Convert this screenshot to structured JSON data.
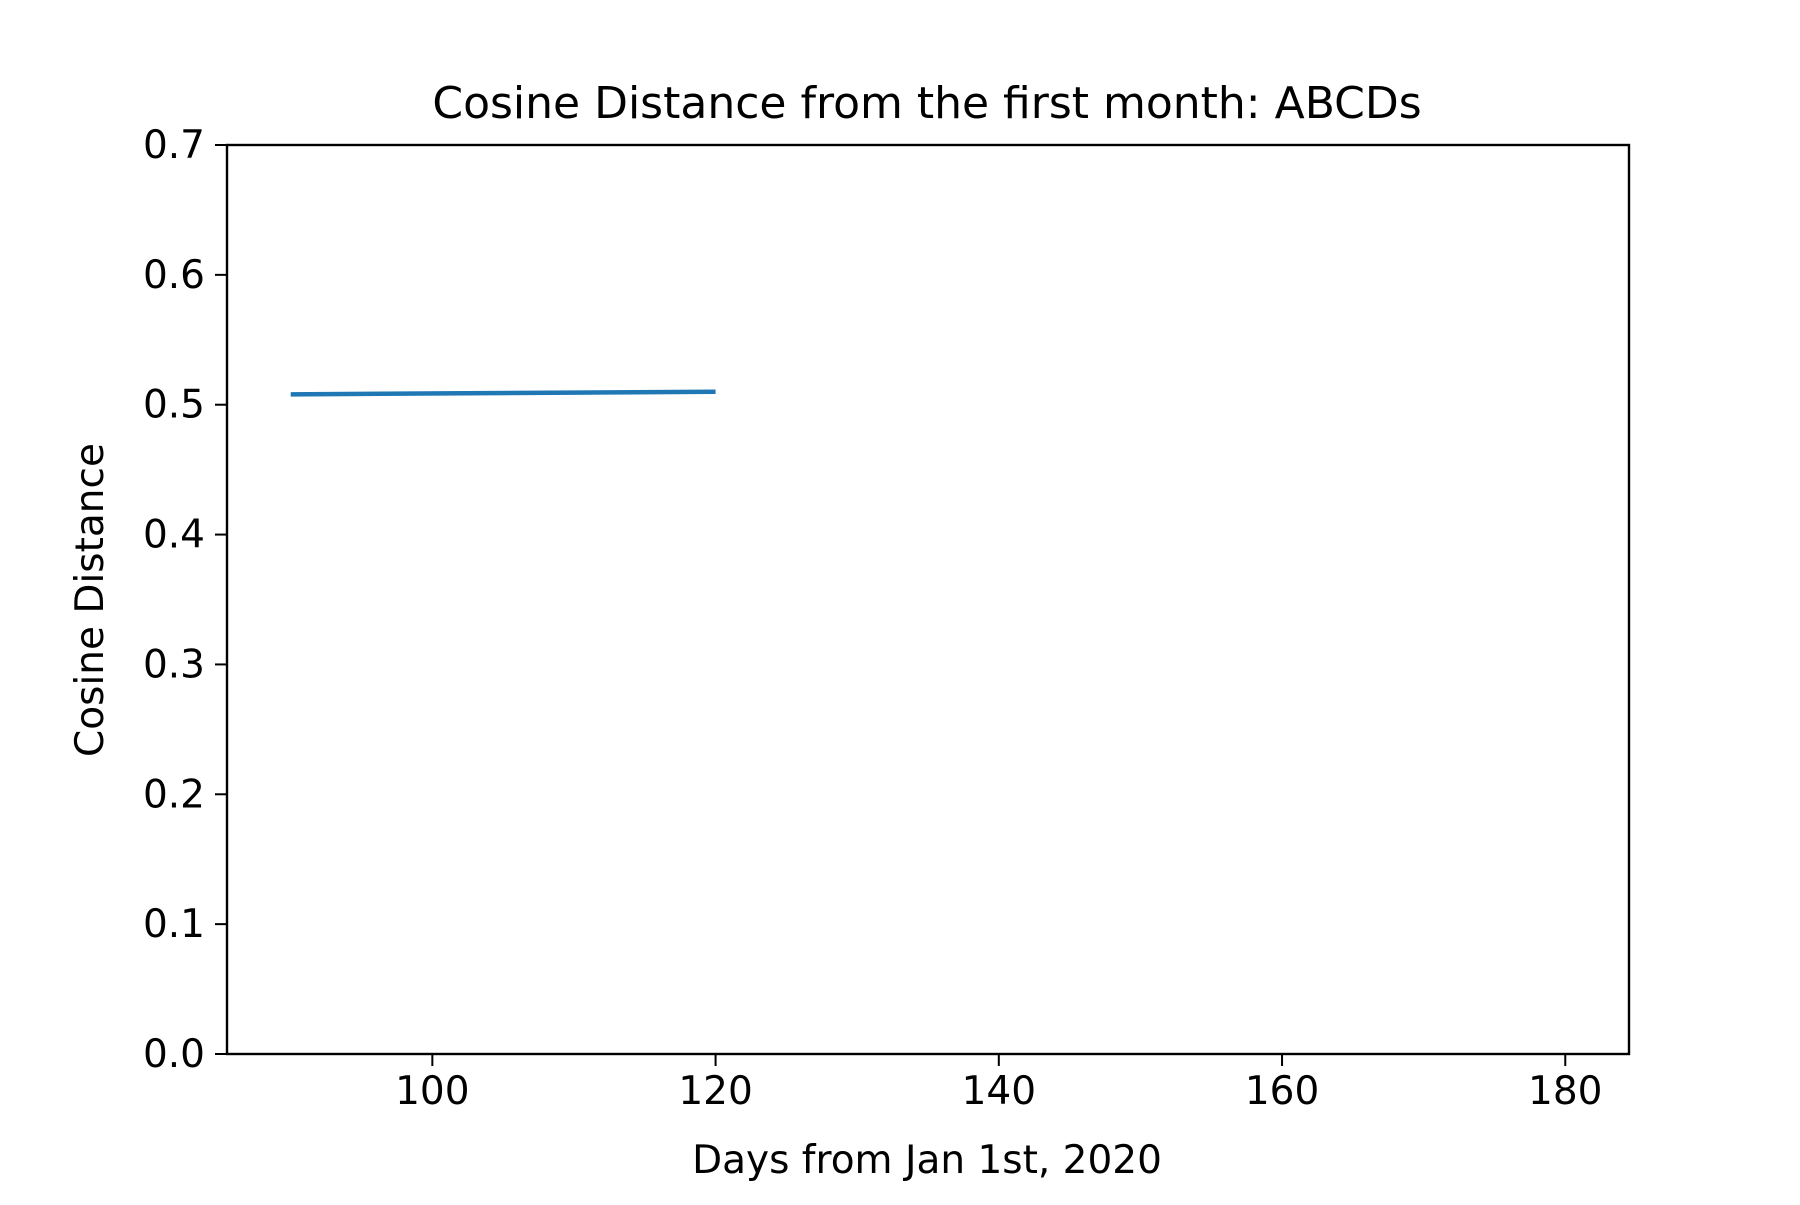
{
  "chart_data": {
    "type": "line",
    "title": "Cosine Distance from the first month: ABCDs",
    "xlabel": "Days from Jan 1st, 2020",
    "ylabel": "Cosine Distance",
    "xlim": [
      85.5,
      184.5
    ],
    "ylim": [
      0.0,
      0.7
    ],
    "xticks": [
      100,
      120,
      140,
      160,
      180
    ],
    "xtick_labels": [
      "100",
      "120",
      "140",
      "160",
      "180"
    ],
    "yticks": [
      0.0,
      0.1,
      0.2,
      0.3,
      0.4,
      0.5,
      0.6,
      0.7
    ],
    "ytick_labels": [
      "0.0",
      "0.1",
      "0.2",
      "0.3",
      "0.4",
      "0.5",
      "0.6",
      "0.7"
    ],
    "grid": false,
    "series": [
      {
        "color": "#1f77b4",
        "x": [
          90,
          120
        ],
        "y": [
          0.508,
          0.51
        ]
      }
    ]
  }
}
